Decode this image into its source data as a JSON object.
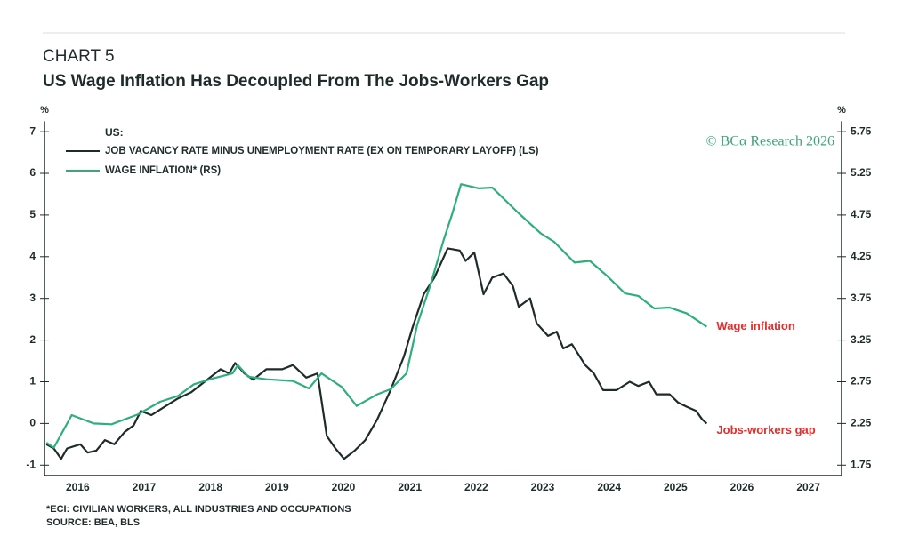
{
  "chart_data": {
    "type": "line",
    "label": "CHART 5",
    "title": "US Wage Inflation Has Decoupled From The Jobs-Workers Gap",
    "legend_title": "US:",
    "watermark": "© BCα Research 2026",
    "ylabel": "%",
    "y2label": "%",
    "xlim": [
      2016,
      2028
    ],
    "xticks": [
      {
        "value": 2016.5,
        "label": "2016"
      },
      {
        "value": 2017.5,
        "label": "2017"
      },
      {
        "value": 2018.5,
        "label": "2018"
      },
      {
        "value": 2019.5,
        "label": "2019"
      },
      {
        "value": 2020.5,
        "label": "2020"
      },
      {
        "value": 2021.5,
        "label": "2021"
      },
      {
        "value": 2022.5,
        "label": "2022"
      },
      {
        "value": 2023.5,
        "label": "2023"
      },
      {
        "value": 2024.5,
        "label": "2024"
      },
      {
        "value": 2025.5,
        "label": "2025"
      },
      {
        "value": 2026.5,
        "label": "2026"
      },
      {
        "value": 2027.5,
        "label": "2027"
      }
    ],
    "ylim": [
      -1.25,
      7.25
    ],
    "yticks": [
      -1,
      0,
      1,
      2,
      3,
      4,
      5,
      6,
      7
    ],
    "y2lim": [
      1.625,
      5.875
    ],
    "y2ticks": [
      1.75,
      2.25,
      2.75,
      3.25,
      3.75,
      4.25,
      4.75,
      5.25,
      5.75
    ],
    "series": [
      {
        "name": "JOB VACANCY RATE MINUS UNEMPLOYMENT RATE (EX ON TEMPORARY LAYOFF) (LS)",
        "color": "#1f2b2b",
        "axis": "y",
        "x": [
          2016.03,
          2016.14,
          2016.25,
          2016.34,
          2016.54,
          2016.65,
          2016.78,
          2016.91,
          2017.05,
          2017.21,
          2017.34,
          2017.45,
          2017.61,
          2017.81,
          2018.01,
          2018.21,
          2018.41,
          2018.65,
          2018.78,
          2018.87,
          2019.01,
          2019.14,
          2019.34,
          2019.58,
          2019.74,
          2019.94,
          2020.11,
          2020.25,
          2020.38,
          2020.51,
          2020.67,
          2020.83,
          2021.01,
          2021.21,
          2021.41,
          2021.54,
          2021.71,
          2021.87,
          2022.07,
          2022.25,
          2022.34,
          2022.47,
          2022.61,
          2022.74,
          2022.91,
          2023.05,
          2023.14,
          2023.31,
          2023.41,
          2023.58,
          2023.71,
          2023.81,
          2023.94,
          2024.14,
          2024.27,
          2024.41,
          2024.61,
          2024.81,
          2024.94,
          2025.1,
          2025.21,
          2025.41,
          2025.54,
          2025.67,
          2025.81,
          2025.9,
          2025.97
        ],
        "values": [
          -0.5,
          -0.6,
          -0.85,
          -0.6,
          -0.5,
          -0.7,
          -0.65,
          -0.4,
          -0.5,
          -0.2,
          -0.05,
          0.3,
          0.2,
          0.4,
          0.6,
          0.75,
          1.0,
          1.3,
          1.2,
          1.45,
          1.2,
          1.05,
          1.3,
          1.3,
          1.4,
          1.1,
          1.2,
          -0.3,
          -0.6,
          -0.85,
          -0.65,
          -0.4,
          0.1,
          0.8,
          1.6,
          2.3,
          3.1,
          3.5,
          4.2,
          4.15,
          3.9,
          4.1,
          3.1,
          3.5,
          3.6,
          3.3,
          2.8,
          3.0,
          2.4,
          2.1,
          2.2,
          1.8,
          1.9,
          1.4,
          1.2,
          0.8,
          0.8,
          1.0,
          0.9,
          1.0,
          0.7,
          0.7,
          0.5,
          0.4,
          0.3,
          0.1,
          0.0
        ]
      },
      {
        "name": "WAGE INFLATION* (RS)",
        "color": "#2fae7d",
        "axis": "y2",
        "x": [
          2016.03,
          2016.14,
          2016.41,
          2016.74,
          2017.01,
          2017.41,
          2017.74,
          2018.01,
          2018.25,
          2018.54,
          2018.83,
          2018.91,
          2019.07,
          2019.34,
          2019.74,
          2019.98,
          2020.17,
          2020.47,
          2020.7,
          2021.01,
          2021.21,
          2021.45,
          2021.61,
          2021.81,
          2022.01,
          2022.14,
          2022.27,
          2022.54,
          2022.74,
          2023.14,
          2023.47,
          2023.67,
          2023.98,
          2024.21,
          2024.47,
          2024.74,
          2024.94,
          2025.18,
          2025.41,
          2025.67,
          2025.97
        ],
        "values": [
          2.02,
          1.96,
          2.35,
          2.25,
          2.24,
          2.36,
          2.51,
          2.58,
          2.72,
          2.79,
          2.85,
          2.95,
          2.81,
          2.78,
          2.76,
          2.67,
          2.85,
          2.69,
          2.46,
          2.6,
          2.66,
          2.85,
          3.43,
          3.91,
          4.45,
          4.77,
          5.12,
          5.07,
          5.08,
          4.77,
          4.53,
          4.43,
          4.18,
          4.2,
          4.02,
          3.81,
          3.78,
          3.63,
          3.64,
          3.57,
          3.41
        ]
      }
    ],
    "annotations": [
      "Wage inflation",
      "Jobs-workers gap"
    ],
    "annotation_color": "#e0302e",
    "footnotes": [
      "*ECI: CIVILIAN WORKERS, ALL INDUSTRIES AND OCCUPATIONS",
      "SOURCE: BEA, BLS"
    ]
  }
}
